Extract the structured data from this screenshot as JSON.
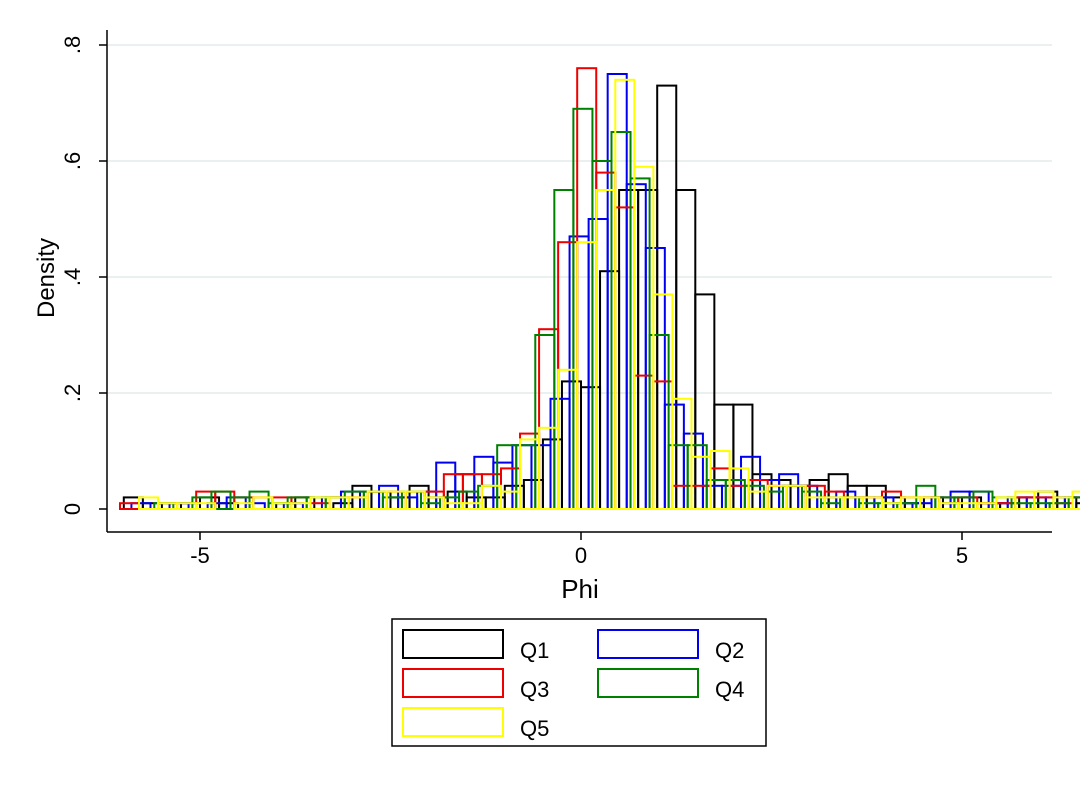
{
  "chart_data": {
    "type": "bar",
    "subtype": "overlaid-histogram",
    "xlabel": "Phi",
    "ylabel": "Density",
    "xlim": [
      -6.2,
      6.2
    ],
    "ylim": [
      0,
      0.8
    ],
    "x_ticks": [
      -5,
      0,
      5
    ],
    "x_tick_labels": [
      "-5",
      "0",
      "5"
    ],
    "y_ticks": [
      0,
      0.2,
      0.4,
      0.6,
      0.8
    ],
    "y_tick_labels": [
      "0",
      ".2",
      ".4",
      ".6",
      ".8"
    ],
    "grid": "horizontal",
    "legend_position": "bottom",
    "series": [
      {
        "name": "Q1",
        "color": "#000000",
        "bin_width": 0.25,
        "bin_start": -6.0,
        "values": [
          0.02,
          0.01,
          0,
          0.01,
          0.02,
          0.01,
          0,
          0,
          0.01,
          0.02,
          0,
          0.01,
          0.04,
          0.03,
          0.02,
          0.04,
          0.02,
          0.03,
          0.02,
          0.02,
          0.04,
          0.05,
          0.12,
          0.22,
          0.21,
          0.41,
          0.55,
          0.55,
          0.73,
          0.55,
          0.37,
          0.18,
          0.18,
          0.06,
          0.05,
          0.04,
          0.05,
          0.06,
          0.04,
          0.04,
          0.02,
          0.01,
          0.02,
          0.01,
          0.02,
          0.01,
          0.01,
          0.02,
          0.03,
          0.02,
          0.01,
          0.02,
          0
        ]
      },
      {
        "name": "Q2",
        "color": "#0000ee",
        "bin_width": 0.25,
        "bin_start": -5.9,
        "values": [
          0.01,
          0,
          0.01,
          0,
          0.01,
          0.02,
          0.01,
          0,
          0.01,
          0,
          0.02,
          0.03,
          0.03,
          0.04,
          0.02,
          0.03,
          0.08,
          0.06,
          0.09,
          0.08,
          0.11,
          0.11,
          0.19,
          0.47,
          0.5,
          0.75,
          0.56,
          0.45,
          0.18,
          0.13,
          0.04,
          0.04,
          0.09,
          0.05,
          0.06,
          0.04,
          0.02,
          0.03,
          0.02,
          0.02,
          0.01,
          0.01,
          0.02,
          0.03,
          0.03,
          0.01,
          0.02,
          0.02,
          0.02,
          0.02,
          0
        ]
      },
      {
        "name": "Q3",
        "color": "#ee0000",
        "bin_width": 0.25,
        "bin_start": -6.05,
        "values": [
          0.01,
          0,
          0.01,
          0,
          0.03,
          0.03,
          0.02,
          0.02,
          0.02,
          0.02,
          0.01,
          0.02,
          0.02,
          0.03,
          0.03,
          0.03,
          0.03,
          0.06,
          0.06,
          0.06,
          0.07,
          0.13,
          0.31,
          0.46,
          0.76,
          0.58,
          0.52,
          0.23,
          0.22,
          0.04,
          0.04,
          0.07,
          0.04,
          0.05,
          0.04,
          0.04,
          0.04,
          0.03,
          0.02,
          0.02,
          0.03,
          0.02,
          0.02,
          0.02,
          0.02,
          0.01,
          0.01,
          0.02,
          0.02,
          0.01,
          0.02,
          0.01,
          0.02
        ]
      },
      {
        "name": "Q4",
        "color": "#008000",
        "bin_width": 0.25,
        "bin_start": -5.85,
        "values": [
          0,
          0.01,
          0,
          0.02,
          0.03,
          0.02,
          0.03,
          0.01,
          0.02,
          0.02,
          0.02,
          0.03,
          0.03,
          0.02,
          0.03,
          0.01,
          0.02,
          0.03,
          0.04,
          0.11,
          0.11,
          0.3,
          0.55,
          0.69,
          0.6,
          0.65,
          0.57,
          0.3,
          0.11,
          0.11,
          0.05,
          0.05,
          0.04,
          0.03,
          0.04,
          0.03,
          0.01,
          0.02,
          0.01,
          0.01,
          0.01,
          0.04,
          0.02,
          0.02,
          0.03,
          0.02,
          0.01,
          0.01,
          0.01,
          0.02,
          0.01,
          0
        ]
      },
      {
        "name": "Q5",
        "color": "#ffff00",
        "bin_width": 0.25,
        "bin_start": -5.8,
        "values": [
          0.02,
          0.01,
          0.01,
          0.01,
          0,
          0.01,
          0.02,
          0.01,
          0.01,
          0.02,
          0.02,
          0.02,
          0.03,
          0.03,
          0.03,
          0.02,
          0.01,
          0.01,
          0.04,
          0.03,
          0.12,
          0.14,
          0.24,
          0.46,
          0.55,
          0.74,
          0.59,
          0.37,
          0.19,
          0.09,
          0.1,
          0.07,
          0.03,
          0.04,
          0.04,
          0.02,
          0.02,
          0.02,
          0.02,
          0.01,
          0.02,
          0.02,
          0.01,
          0.01,
          0.01,
          0.02,
          0.03,
          0.03,
          0.02,
          0.03,
          0.02,
          0.01,
          0.03,
          0.04
        ]
      }
    ]
  }
}
